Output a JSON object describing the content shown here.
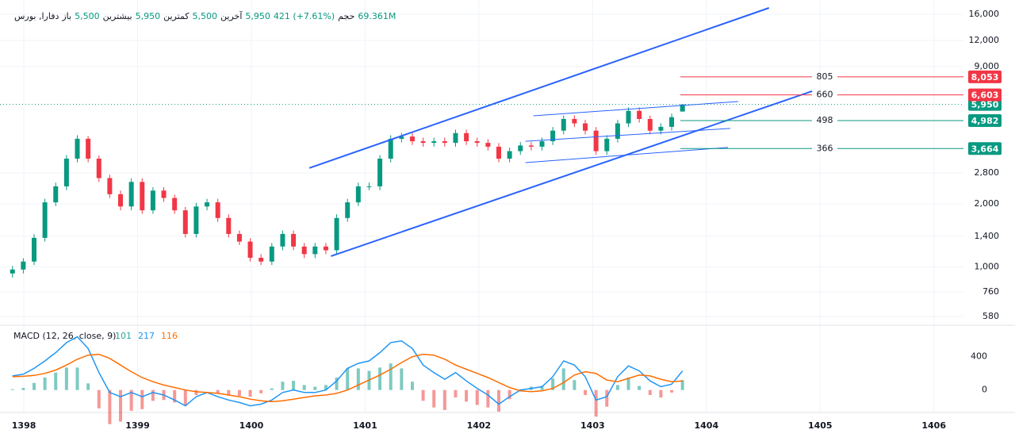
{
  "chart_data": [
    {
      "type": "candlestick",
      "header": {
        "symbol": "دفارا, بورس",
        "open_label": "باز",
        "open": "5,500",
        "high_label": "بیشترین",
        "high": "5,950",
        "low_label": "کمترین",
        "low": "5,500",
        "last_label": "آخرین",
        "last": "5,950",
        "change": "421 (+7.61%)",
        "volume_label": "حجم",
        "volume": "69.361M"
      },
      "log_scale": true,
      "grid": true,
      "up_color": "#089981",
      "down_color": "#f23645",
      "xlim": [
        1397.86,
        1406.26
      ],
      "ylim": [
        527,
        17150
      ],
      "yticks": [
        580,
        760,
        {
          "value": 1000,
          "label": "1,000"
        },
        {
          "value": 1400,
          "label": "1,400"
        },
        {
          "value": 2000,
          "label": "2,000"
        },
        {
          "value": 2800,
          "label": "2,800"
        },
        {
          "value": 9000,
          "label": "9,000"
        },
        {
          "value": 12000,
          "label": "12,000"
        },
        {
          "value": 16000,
          "label": "16,000"
        }
      ],
      "x": [
        1397.9,
        1397.995,
        1398.09,
        1398.185,
        1398.28,
        1398.375,
        1398.47,
        1398.565,
        1398.66,
        1398.755,
        1398.85,
        1398.945,
        1399.04,
        1399.135,
        1399.23,
        1399.325,
        1399.42,
        1399.515,
        1399.61,
        1399.705,
        1399.8,
        1399.895,
        1399.99,
        1400.085,
        1400.18,
        1400.275,
        1400.37,
        1400.465,
        1400.56,
        1400.655,
        1400.75,
        1400.845,
        1400.94,
        1401.035,
        1401.13,
        1401.225,
        1401.32,
        1401.415,
        1401.51,
        1401.605,
        1401.7,
        1401.795,
        1401.89,
        1401.985,
        1402.08,
        1402.175,
        1402.27,
        1402.365,
        1402.46,
        1402.555,
        1402.65,
        1402.745,
        1402.84,
        1402.935,
        1403.03,
        1403.125,
        1403.22,
        1403.315,
        1403.41,
        1403.505,
        1403.6,
        1403.695,
        1403.79
      ],
      "open": [
        930,
        971,
        1060,
        1375,
        2030,
        2420,
        3280,
        4080,
        3280,
        2650,
        2220,
        1940,
        2540,
        1860,
        2310,
        2130,
        1860,
        1435,
        1940,
        2030,
        1710,
        1435,
        1320,
        1105,
        1060,
        1250,
        1435,
        1250,
        1150,
        1250,
        1200,
        1710,
        2030,
        2420,
        2420,
        3280,
        4080,
        4180,
        3970,
        3900,
        3970,
        3900,
        4340,
        3970,
        3900,
        3740,
        3280,
        3560,
        3790,
        3740,
        3970,
        4460,
        5070,
        4830,
        4460,
        3560,
        4080,
        4830,
        5540,
        5070,
        4460,
        4650,
        5500
      ],
      "high": [
        1010,
        1100,
        1430,
        2110,
        2520,
        3410,
        4240,
        4200,
        3400,
        2750,
        2310,
        2640,
        2640,
        2400,
        2400,
        2210,
        1930,
        2020,
        2110,
        2110,
        1780,
        1490,
        1370,
        1150,
        1300,
        1490,
        1490,
        1300,
        1300,
        1300,
        1780,
        2110,
        2520,
        2520,
        3410,
        4240,
        4350,
        4350,
        4130,
        4130,
        4130,
        4510,
        4510,
        4130,
        4060,
        3890,
        3700,
        3940,
        3940,
        4130,
        4640,
        5270,
        5270,
        5020,
        4640,
        4240,
        5020,
        5760,
        5760,
        5270,
        4840,
        5380,
        5950
      ],
      "low": [
        890,
        930,
        1020,
        1320,
        1950,
        2320,
        3150,
        3150,
        2540,
        2130,
        1860,
        1860,
        1790,
        1790,
        2040,
        1790,
        1380,
        1380,
        1860,
        1640,
        1380,
        1270,
        1060,
        1020,
        1020,
        1200,
        1200,
        1100,
        1100,
        1150,
        1150,
        1640,
        1950,
        2320,
        2320,
        3150,
        3920,
        3810,
        3740,
        3740,
        3740,
        3740,
        3810,
        3740,
        3590,
        3150,
        3150,
        3420,
        3590,
        3590,
        3810,
        4280,
        4640,
        4280,
        3420,
        3420,
        3920,
        4640,
        4870,
        4280,
        4280,
        4460,
        5500
      ],
      "close": [
        971,
        1060,
        1375,
        2030,
        2420,
        3280,
        4080,
        3280,
        2650,
        2220,
        1940,
        2540,
        1860,
        2310,
        2130,
        1860,
        1435,
        1940,
        2030,
        1710,
        1435,
        1320,
        1105,
        1060,
        1250,
        1435,
        1250,
        1150,
        1250,
        1200,
        1710,
        2030,
        2420,
        2420,
        3280,
        4080,
        4180,
        3970,
        3900,
        3970,
        3900,
        4340,
        3970,
        3900,
        3740,
        3280,
        3560,
        3790,
        3740,
        3970,
        4460,
        5070,
        4830,
        4460,
        3560,
        4080,
        4830,
        5540,
        5070,
        4460,
        4650,
        5170,
        5950
      ],
      "trend_lines": [
        {
          "color": "#2962ff",
          "x": [
            1400.51,
            1404.55
          ],
          "y": [
            2960,
            17150
          ]
        },
        {
          "color": "#2962ff",
          "x": [
            1400.7,
            1404.93
          ],
          "y": [
            1125,
            6880
          ]
        },
        {
          "color": "#2962ff",
          "x": [
            1402.48,
            1404.28
          ],
          "y": [
            5250,
            6140
          ]
        },
        {
          "color": "#2962ff",
          "x": [
            1402.41,
            1404.21
          ],
          "y": [
            3970,
            4570
          ]
        },
        {
          "color": "#2962ff",
          "x": [
            1402.41,
            1404.19
          ],
          "y": [
            3140,
            3710
          ]
        }
      ],
      "levels": [
        {
          "value": 8053,
          "label": "8,053",
          "tag": 805,
          "color": "#f23645"
        },
        {
          "value": 6603,
          "label": "6,603",
          "tag": 660,
          "color": "#f23645"
        },
        {
          "value": 4982,
          "label": "4,982",
          "tag": 498,
          "color": "#089981"
        },
        {
          "value": 3664,
          "label": "3,664",
          "tag": 366,
          "color": "#089981"
        }
      ],
      "last_price": {
        "value": 5950,
        "label": "5,950",
        "color": "#089981"
      }
    },
    {
      "type": "macd",
      "title": "MACD (12, 26, close, 9)",
      "legend_values": [
        101,
        217,
        116
      ],
      "xlim": [
        1397.86,
        1406.26
      ],
      "ylim": [
        -270,
        760
      ],
      "yticks": [
        0,
        400
      ],
      "xticks": [
        1398,
        1399,
        1400,
        1401,
        1402,
        1403,
        1404,
        1405,
        1406
      ],
      "x": [
        1397.9,
        1397.995,
        1398.09,
        1398.185,
        1398.28,
        1398.375,
        1398.47,
        1398.565,
        1398.66,
        1398.755,
        1398.85,
        1398.945,
        1399.04,
        1399.135,
        1399.23,
        1399.325,
        1399.42,
        1399.515,
        1399.61,
        1399.705,
        1399.8,
        1399.895,
        1399.99,
        1400.085,
        1400.18,
        1400.275,
        1400.37,
        1400.465,
        1400.56,
        1400.655,
        1400.75,
        1400.845,
        1400.94,
        1401.035,
        1401.13,
        1401.225,
        1401.32,
        1401.415,
        1401.51,
        1401.605,
        1401.7,
        1401.795,
        1401.89,
        1401.985,
        1402.08,
        1402.175,
        1402.27,
        1402.365,
        1402.46,
        1402.555,
        1402.65,
        1402.745,
        1402.84,
        1402.935,
        1403.03,
        1403.125,
        1403.22,
        1403.315,
        1403.41,
        1403.505,
        1403.6,
        1403.695,
        1403.79
      ],
      "series": [
        {
          "color": "#26a69a",
          "negative_color": "#ef5350",
          "values": [
            10,
            25,
            85,
            150,
            210,
            270,
            270,
            80,
            -220,
            -410,
            -380,
            -250,
            -230,
            -130,
            -120,
            -150,
            -190,
            -60,
            0,
            -40,
            -60,
            -70,
            -80,
            -40,
            20,
            100,
            110,
            60,
            40,
            60,
            150,
            260,
            260,
            230,
            270,
            320,
            260,
            100,
            -130,
            -210,
            -240,
            -90,
            -140,
            -180,
            -210,
            -260,
            -110,
            10,
            40,
            50,
            140,
            260,
            120,
            -60,
            -320,
            -200,
            60,
            150,
            50,
            -60,
            -90,
            -30,
            120
          ]
        },
        {
          "color": "#2196f3",
          "values": [
            170,
            190,
            260,
            350,
            450,
            570,
            640,
            500,
            210,
            -30,
            -80,
            -30,
            -80,
            -30,
            -60,
            -120,
            -190,
            -80,
            -30,
            -80,
            -120,
            -150,
            -190,
            -170,
            -120,
            -30,
            0,
            -30,
            -30,
            0,
            110,
            260,
            320,
            350,
            450,
            570,
            590,
            500,
            300,
            210,
            130,
            210,
            110,
            20,
            -60,
            -170,
            -80,
            0,
            20,
            40,
            160,
            350,
            300,
            160,
            -120,
            -80,
            160,
            290,
            230,
            110,
            40,
            70,
            230
          ]
        },
        {
          "color": "#ff6d00",
          "values": [
            160,
            165,
            175,
            200,
            240,
            300,
            370,
            420,
            430,
            380,
            300,
            220,
            150,
            100,
            60,
            30,
            0,
            -20,
            -30,
            -40,
            -60,
            -80,
            -110,
            -130,
            -140,
            -130,
            -110,
            -90,
            -70,
            -60,
            -40,
            0,
            60,
            120,
            180,
            250,
            330,
            400,
            430,
            420,
            370,
            300,
            250,
            200,
            150,
            90,
            30,
            -10,
            -20,
            -10,
            20,
            90,
            180,
            220,
            200,
            120,
            100,
            140,
            180,
            170,
            130,
            100,
            110
          ]
        }
      ]
    }
  ]
}
